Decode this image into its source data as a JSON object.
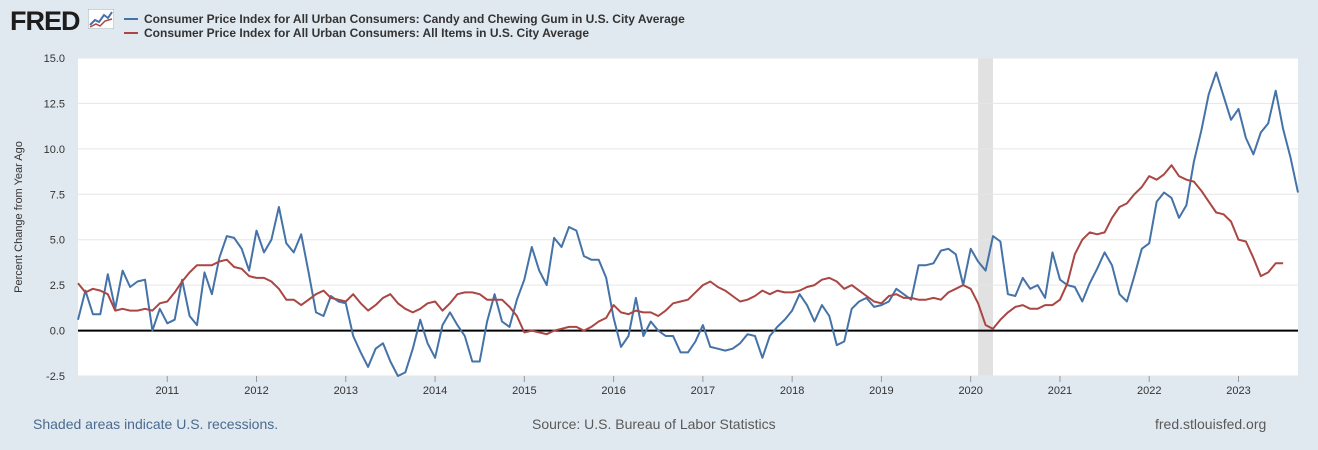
{
  "brand": {
    "logo_text": "FRED"
  },
  "colors": {
    "candy": "#4572a7",
    "allitems": "#aa4643",
    "background": "#e1e9f0",
    "plot_bg": "#ffffff",
    "recession": "#e1e1e1"
  },
  "legend": [
    {
      "label": "Consumer Price Index for All Urban Consumers: Candy and Chewing Gum in U.S. City Average"
    },
    {
      "label": "Consumer Price Index for All Urban Consumers: All Items in U.S. City Average"
    }
  ],
  "footer": {
    "recession_note": "Shaded areas indicate U.S. recessions.",
    "source": "Source: U.S. Bureau of Labor Statistics",
    "site": "fred.stlouisfed.org"
  },
  "chart_data": {
    "type": "line",
    "title": "",
    "xlabel": "",
    "ylabel": "Percent Change from Year Ago",
    "ylim": [
      -2.5,
      15.0
    ],
    "xlim": [
      "2010-01",
      "2023-09"
    ],
    "yticks": [
      "-2.5",
      "0.0",
      "2.5",
      "5.0",
      "7.5",
      "10.0",
      "12.5",
      "15.0"
    ],
    "xticks": [
      "2011",
      "2012",
      "2013",
      "2014",
      "2015",
      "2016",
      "2017",
      "2018",
      "2019",
      "2020",
      "2021",
      "2022",
      "2023"
    ],
    "grid": true,
    "zero_line": true,
    "recessions": [
      [
        "2020-02",
        "2020-04"
      ]
    ],
    "series": [
      {
        "name": "Consumer Price Index for All Urban Consumers: Candy and Chewing Gum in U.S. City Average",
        "x_start": "2010-01",
        "frequency": "monthly",
        "values": [
          0.6,
          2.2,
          0.9,
          0.9,
          3.1,
          1.2,
          3.3,
          2.4,
          2.7,
          2.8,
          0.0,
          1.2,
          0.4,
          0.6,
          2.8,
          0.8,
          0.3,
          3.2,
          2.0,
          4.0,
          5.2,
          5.1,
          4.5,
          3.3,
          5.5,
          4.3,
          5.0,
          6.8,
          4.8,
          4.3,
          5.3,
          3.2,
          1.0,
          0.8,
          1.9,
          1.6,
          1.5,
          -0.3,
          -1.2,
          -2.0,
          -1.0,
          -0.7,
          -1.7,
          -2.5,
          -2.3,
          -1.0,
          0.6,
          -0.7,
          -1.5,
          0.3,
          1.0,
          0.3,
          -0.3,
          -1.7,
          -1.7,
          0.5,
          2.0,
          0.5,
          0.2,
          1.7,
          2.8,
          4.6,
          3.3,
          2.5,
          5.1,
          4.6,
          5.7,
          5.5,
          4.1,
          3.9,
          3.9,
          2.9,
          0.7,
          -0.9,
          -0.3,
          1.8,
          -0.3,
          0.5,
          0.0,
          -0.3,
          -0.3,
          -1.2,
          -1.2,
          -0.6,
          0.3,
          -0.9,
          -1.0,
          -1.1,
          -1.0,
          -0.7,
          -0.2,
          -0.3,
          -1.5,
          -0.3,
          0.2,
          0.6,
          1.1,
          2.0,
          1.4,
          0.5,
          1.4,
          0.8,
          -0.8,
          -0.6,
          1.2,
          1.6,
          1.8,
          1.3,
          1.4,
          1.6,
          2.3,
          2.0,
          1.7,
          3.6,
          3.6,
          3.7,
          4.4,
          4.5,
          4.2,
          2.5,
          4.5,
          3.8,
          3.3,
          5.2,
          4.9,
          2.0,
          1.9,
          2.9,
          2.3,
          2.5,
          1.8,
          4.3,
          2.8,
          2.5,
          2.4,
          1.6,
          2.6,
          3.4,
          4.3,
          3.6,
          2.0,
          1.6,
          3.0,
          4.5,
          4.8,
          7.1,
          7.6,
          7.3,
          6.2,
          6.9,
          9.3,
          11.0,
          13.0,
          14.2,
          12.9,
          11.6,
          12.2,
          10.6,
          9.7,
          10.9,
          11.4,
          13.2,
          11.1,
          9.5,
          7.6
        ]
      },
      {
        "name": "Consumer Price Index for All Urban Consumers: All Items in U.S. City Average",
        "x_start": "2010-01",
        "frequency": "monthly",
        "values": [
          2.6,
          2.1,
          2.3,
          2.2,
          2.0,
          1.1,
          1.2,
          1.1,
          1.1,
          1.2,
          1.1,
          1.5,
          1.6,
          2.1,
          2.7,
          3.2,
          3.6,
          3.6,
          3.6,
          3.8,
          3.9,
          3.5,
          3.4,
          3.0,
          2.9,
          2.9,
          2.7,
          2.3,
          1.7,
          1.7,
          1.4,
          1.7,
          2.0,
          2.2,
          1.8,
          1.7,
          1.6,
          2.0,
          1.5,
          1.1,
          1.4,
          1.8,
          2.0,
          1.5,
          1.2,
          1.0,
          1.2,
          1.5,
          1.6,
          1.1,
          1.5,
          2.0,
          2.1,
          2.1,
          2.0,
          1.7,
          1.7,
          1.7,
          1.3,
          0.8,
          -0.1,
          0.0,
          -0.1,
          -0.2,
          0.0,
          0.1,
          0.2,
          0.2,
          0.0,
          0.2,
          0.5,
          0.7,
          1.4,
          1.0,
          0.9,
          1.1,
          1.0,
          1.0,
          0.8,
          1.1,
          1.5,
          1.6,
          1.7,
          2.1,
          2.5,
          2.7,
          2.4,
          2.2,
          1.9,
          1.6,
          1.7,
          1.9,
          2.2,
          2.0,
          2.2,
          2.1,
          2.1,
          2.2,
          2.4,
          2.5,
          2.8,
          2.9,
          2.7,
          2.3,
          2.5,
          2.2,
          1.9,
          1.6,
          1.5,
          1.9,
          2.0,
          1.8,
          1.8,
          1.7,
          1.7,
          1.8,
          1.7,
          2.1,
          2.3,
          2.5,
          2.3,
          1.5,
          0.3,
          0.1,
          0.6,
          1.0,
          1.3,
          1.4,
          1.2,
          1.2,
          1.4,
          1.4,
          1.7,
          2.6,
          4.2,
          5.0,
          5.4,
          5.3,
          5.4,
          6.2,
          6.8,
          7.0,
          7.5,
          7.9,
          8.5,
          8.3,
          8.6,
          9.1,
          8.5,
          8.3,
          8.2,
          7.7,
          7.1,
          6.5,
          6.4,
          6.0,
          5.0,
          4.9,
          4.0,
          3.0,
          3.2,
          3.7,
          3.7
        ]
      }
    ]
  }
}
